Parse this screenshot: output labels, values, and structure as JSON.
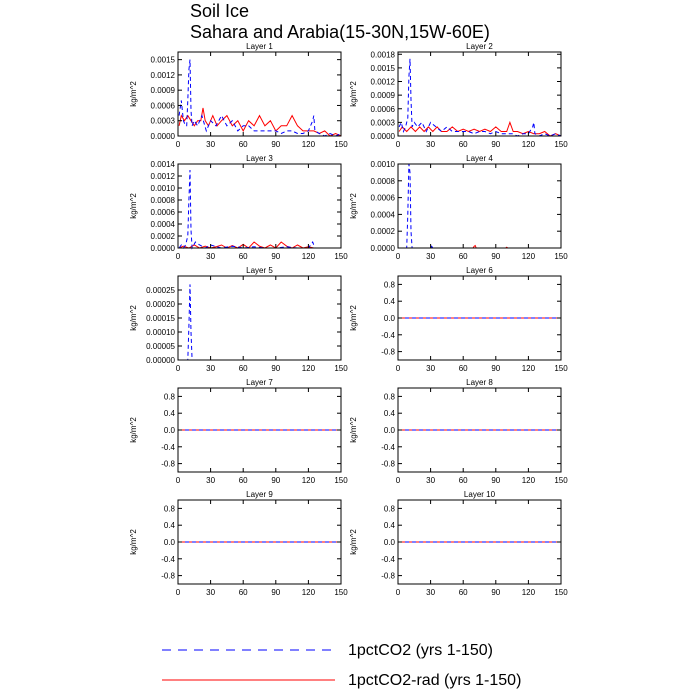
{
  "title_line1": "Soil Ice",
  "title_line2": "Sahara and Arabia(15-30N,15W-60E)",
  "legend": [
    {
      "label": "1pctCO2 (yrs 1-150)",
      "color": "#0000ff",
      "dash": "dashed"
    },
    {
      "label": "1pctCO2-rad (yrs 1-150)",
      "color": "#ff0000",
      "dash": "solid"
    }
  ],
  "colors": {
    "series_dashed": "#0000ff",
    "series_solid": "#ff0000"
  },
  "chart_data": [
    {
      "type": "line",
      "title": "Layer 1",
      "ylabel": "kg/m^2",
      "xlim": [
        0,
        150
      ],
      "ylim": [
        0,
        0.00165
      ],
      "xticks": [
        0,
        30,
        60,
        90,
        120,
        150
      ],
      "yticks": [
        0,
        0.0003,
        0.0006,
        0.0009,
        0.0012,
        0.0015
      ],
      "ytick_labels": [
        "0.0000",
        "0.0003",
        "0.0006",
        "0.0009",
        "0.0012",
        "0.0015"
      ],
      "series": [
        {
          "name": "1pctCO2 (yrs 1-150)",
          "x": [
            1,
            3,
            5,
            7,
            8,
            9,
            10,
            11,
            12,
            13,
            15,
            18,
            22,
            26,
            30,
            35,
            40,
            45,
            50,
            55,
            60,
            65,
            70,
            75,
            80,
            85,
            90,
            95,
            100,
            105,
            110,
            115,
            120,
            124,
            125,
            126,
            130,
            135,
            140,
            145,
            150
          ],
          "y": [
            0.0004,
            0.0007,
            0.0003,
            0.0002,
            0.0002,
            0.0007,
            0.0013,
            0.0015,
            0.0005,
            0.0002,
            0.0003,
            0.0002,
            0.0004,
            0.0001,
            0.0003,
            0.0002,
            0.0004,
            0.0002,
            0.0003,
            0.0001,
            0.0002,
            0.0002,
            0.0001,
            0.0001,
            0.0001,
            0.0001,
            0.0001,
            5e-05,
            0.0001,
            0.0001,
            5e-05,
            5e-05,
            0.0001,
            0.0003,
            0.0004,
            0.0001,
            5e-05,
            0.0,
            5e-05,
            0.0,
            5e-05
          ]
        },
        {
          "name": "1pctCO2-rad (yrs 1-150)",
          "x": [
            1,
            3,
            6,
            9,
            12,
            15,
            18,
            21,
            23,
            25,
            28,
            32,
            36,
            40,
            45,
            50,
            55,
            60,
            65,
            70,
            75,
            80,
            85,
            90,
            95,
            100,
            105,
            110,
            115,
            120,
            125,
            130,
            135,
            140,
            145,
            150
          ],
          "y": [
            0.0002,
            0.0004,
            0.0003,
            0.0004,
            0.0003,
            0.0002,
            0.0003,
            0.0003,
            0.00055,
            0.0003,
            0.0002,
            0.0004,
            0.0002,
            0.0003,
            0.0004,
            0.0002,
            0.0003,
            0.0001,
            0.0003,
            0.0002,
            0.0004,
            0.0002,
            0.0003,
            0.0001,
            0.0002,
            0.0002,
            0.0004,
            0.0002,
            0.0001,
            0.0001,
            0.0001,
            5e-05,
            0.0001,
            0.0,
            5e-05,
            0.0
          ]
        }
      ]
    },
    {
      "type": "line",
      "title": "Layer 2",
      "ylabel": "kg/m^2",
      "xlim": [
        0,
        150
      ],
      "ylim": [
        0,
        0.00185
      ],
      "xticks": [
        0,
        30,
        60,
        90,
        120,
        150
      ],
      "yticks": [
        0,
        0.0003,
        0.0006,
        0.0009,
        0.0012,
        0.0015,
        0.0018
      ],
      "ytick_labels": [
        "0.0000",
        "0.0003",
        "0.0006",
        "0.0009",
        "0.0012",
        "0.0015",
        "0.0018"
      ],
      "series": [
        {
          "name": "1pctCO2 (yrs 1-150)",
          "x": [
            1,
            3,
            5,
            7,
            9,
            10,
            11,
            12,
            13,
            15,
            18,
            22,
            26,
            30,
            35,
            40,
            45,
            50,
            55,
            60,
            65,
            70,
            75,
            80,
            85,
            90,
            95,
            100,
            105,
            110,
            115,
            120,
            124,
            125,
            126,
            130,
            135,
            140,
            145,
            150
          ],
          "y": [
            0.0002,
            0.0003,
            0.0001,
            0.0002,
            0.0004,
            0.0013,
            0.0017,
            0.0008,
            0.0002,
            0.0003,
            0.0002,
            0.0003,
            0.0001,
            0.0003,
            0.0002,
            0.0001,
            0.0002,
            0.0001,
            0.0001,
            0.0001,
            0.0001,
            5e-05,
            0.0001,
            0.0001,
            5e-05,
            0.0001,
            5e-05,
            5e-05,
            5e-05,
            0.0,
            5e-05,
            5e-05,
            0.0002,
            0.0003,
            5e-05,
            0.0,
            5e-05,
            0.0,
            5e-05,
            0.0
          ]
        },
        {
          "name": "1pctCO2-rad (yrs 1-150)",
          "x": [
            1,
            4,
            8,
            12,
            16,
            20,
            24,
            28,
            32,
            36,
            40,
            45,
            50,
            55,
            60,
            65,
            70,
            75,
            80,
            85,
            90,
            95,
            100,
            103,
            106,
            110,
            115,
            120,
            125,
            130,
            135,
            140,
            145,
            150
          ],
          "y": [
            0.0001,
            0.0002,
            0.0001,
            0.0002,
            0.0001,
            0.0002,
            0.0001,
            0.0002,
            0.0001,
            0.0002,
            0.0001,
            0.0001,
            0.0002,
            0.0001,
            0.00015,
            0.0001,
            0.00015,
            0.0001,
            0.00015,
            0.0001,
            0.0002,
            0.0001,
            0.0001,
            0.0003,
            0.0001,
            0.0001,
            5e-05,
            0.0001,
            5e-05,
            5e-05,
            0.0001,
            0.0,
            5e-05,
            0.0
          ]
        }
      ]
    },
    {
      "type": "line",
      "title": "Layer 3",
      "ylabel": "kg/m^2",
      "xlim": [
        0,
        150
      ],
      "ylim": [
        0,
        0.0014
      ],
      "xticks": [
        0,
        30,
        60,
        90,
        120,
        150
      ],
      "yticks": [
        0,
        0.0002,
        0.0004,
        0.0006,
        0.0008,
        0.001,
        0.0012,
        0.0014
      ],
      "ytick_labels": [
        "0.0000",
        "0.0002",
        "0.0004",
        "0.0006",
        "0.0008",
        "0.0010",
        "0.0012",
        "0.0014"
      ],
      "series": [
        {
          "name": "1pctCO2 (yrs 1-150)",
          "x": [
            1,
            3,
            5,
            7,
            9,
            10,
            11,
            12,
            13,
            16,
            20,
            25,
            30,
            40,
            50,
            60,
            70,
            80,
            90,
            100,
            110,
            120,
            124,
            125,
            126,
            130,
            140,
            150
          ],
          "y": [
            0.0,
            5e-05,
            0.0,
            5e-05,
            0.0002,
            0.0008,
            0.0013,
            0.0003,
            0.0,
            0.0001,
            5e-05,
            0.0,
            5e-05,
            0.0,
            3e-05,
            0.0,
            2e-05,
            0.0,
            0.0,
            2e-05,
            0.0,
            0.0,
            0.0001,
            5e-05,
            0.0,
            0.0,
            0.0,
            0.0
          ]
        },
        {
          "name": "1pctCO2-rad (yrs 1-150)",
          "x": [
            1,
            5,
            10,
            15,
            20,
            25,
            30,
            35,
            40,
            45,
            50,
            55,
            60,
            65,
            70,
            75,
            80,
            85,
            90,
            95,
            100,
            105,
            110,
            115,
            120,
            125,
            130,
            140,
            150
          ],
          "y": [
            0.0,
            3e-05,
            0.0,
            5e-05,
            0.0,
            3e-05,
            0.0,
            2e-05,
            5e-05,
            0.0,
            4e-05,
            0.0,
            6e-05,
            0.0,
            0.0001,
            3e-05,
            0.0,
            5e-05,
            0.0,
            0.0001,
            3e-05,
            0.0,
            5e-05,
            0.0,
            2e-05,
            0.0,
            0.0,
            0.0,
            0.0
          ]
        }
      ]
    },
    {
      "type": "line",
      "title": "Layer 4",
      "ylabel": "kg/m^2",
      "xlim": [
        0,
        150
      ],
      "ylim": [
        0,
        0.001
      ],
      "xticks": [
        0,
        30,
        60,
        90,
        120,
        150
      ],
      "yticks": [
        0,
        0.0002,
        0.0004,
        0.0006,
        0.0008,
        0.001
      ],
      "ytick_labels": [
        "0.0000",
        "0.0002",
        "0.0004",
        "0.0006",
        "0.0008",
        "0.0010"
      ],
      "series": [
        {
          "name": "1pctCO2 (yrs 1-150)",
          "x": [
            0,
            8,
            9,
            10,
            11,
            12,
            13,
            14,
            30,
            31,
            32,
            150
          ],
          "y": [
            0.0,
            0.0,
            0.0004,
            0.001,
            0.0009,
            0.0002,
            0.0,
            0.0,
            0.0,
            2e-05,
            0.0,
            0.0
          ]
        },
        {
          "name": "1pctCO2-rad (yrs 1-150)",
          "x": [
            0,
            69,
            70,
            71,
            72,
            99,
            100,
            101,
            150
          ],
          "y": [
            0.0,
            0.0,
            2e-05,
            3e-05,
            0.0,
            0.0,
            1e-05,
            0.0,
            0.0
          ]
        }
      ]
    },
    {
      "type": "line",
      "title": "Layer 5",
      "ylabel": "kg/m^2",
      "xlim": [
        0,
        150
      ],
      "ylim": [
        0,
        0.0003
      ],
      "xticks": [
        0,
        30,
        60,
        90,
        120,
        150
      ],
      "yticks": [
        0,
        5e-05,
        0.0001,
        0.00015,
        0.0002,
        0.00025
      ],
      "ytick_labels": [
        "0.00000",
        "0.00005",
        "0.00010",
        "0.00015",
        "0.00020",
        "0.00025"
      ],
      "series": [
        {
          "name": "1pctCO2 (yrs 1-150)",
          "x": [
            0,
            9,
            10,
            11,
            12,
            13,
            150
          ],
          "y": [
            0.0,
            0.0,
            0.00012,
            0.00027,
            0.0001,
            0.0,
            0.0
          ]
        },
        {
          "name": "1pctCO2-rad (yrs 1-150)",
          "x": [
            0,
            150
          ],
          "y": [
            0.0,
            0.0
          ]
        }
      ]
    },
    {
      "type": "line",
      "title": "Layer 6",
      "ylabel": "kg/m^2",
      "xlim": [
        0,
        150
      ],
      "ylim": [
        -1,
        1
      ],
      "xticks": [
        0,
        30,
        60,
        90,
        120,
        150
      ],
      "yticks": [
        -0.8,
        -0.4,
        0.0,
        0.4,
        0.8
      ],
      "ytick_labels": [
        "-0.8",
        "-0.4",
        "0.0",
        "0.4",
        "0.8"
      ],
      "series": [
        {
          "name": "1pctCO2 (yrs 1-150)",
          "x": [
            0,
            150
          ],
          "y": [
            0,
            0
          ]
        },
        {
          "name": "1pctCO2-rad (yrs 1-150)",
          "x": [
            0,
            150
          ],
          "y": [
            0,
            0
          ]
        }
      ]
    },
    {
      "type": "line",
      "title": "Layer 7",
      "ylabel": "kg/m^2",
      "xlim": [
        0,
        150
      ],
      "ylim": [
        -1,
        1
      ],
      "xticks": [
        0,
        30,
        60,
        90,
        120,
        150
      ],
      "yticks": [
        -0.8,
        -0.4,
        0.0,
        0.4,
        0.8
      ],
      "ytick_labels": [
        "-0.8",
        "-0.4",
        "0.0",
        "0.4",
        "0.8"
      ],
      "series": [
        {
          "name": "1pctCO2 (yrs 1-150)",
          "x": [
            0,
            150
          ],
          "y": [
            0,
            0
          ]
        },
        {
          "name": "1pctCO2-rad (yrs 1-150)",
          "x": [
            0,
            150
          ],
          "y": [
            0,
            0
          ]
        }
      ]
    },
    {
      "type": "line",
      "title": "Layer 8",
      "ylabel": "kg/m^2",
      "xlim": [
        0,
        150
      ],
      "ylim": [
        -1,
        1
      ],
      "xticks": [
        0,
        30,
        60,
        90,
        120,
        150
      ],
      "yticks": [
        -0.8,
        -0.4,
        0.0,
        0.4,
        0.8
      ],
      "ytick_labels": [
        "-0.8",
        "-0.4",
        "0.0",
        "0.4",
        "0.8"
      ],
      "series": [
        {
          "name": "1pctCO2 (yrs 1-150)",
          "x": [
            0,
            150
          ],
          "y": [
            0,
            0
          ]
        },
        {
          "name": "1pctCO2-rad (yrs 1-150)",
          "x": [
            0,
            150
          ],
          "y": [
            0,
            0
          ]
        }
      ]
    },
    {
      "type": "line",
      "title": "Layer 9",
      "ylabel": "kg/m^2",
      "xlim": [
        0,
        150
      ],
      "ylim": [
        -1,
        1
      ],
      "xticks": [
        0,
        30,
        60,
        90,
        120,
        150
      ],
      "yticks": [
        -0.8,
        -0.4,
        0.0,
        0.4,
        0.8
      ],
      "ytick_labels": [
        "-0.8",
        "-0.4",
        "0.0",
        "0.4",
        "0.8"
      ],
      "series": [
        {
          "name": "1pctCO2 (yrs 1-150)",
          "x": [
            0,
            150
          ],
          "y": [
            0,
            0
          ]
        },
        {
          "name": "1pctCO2-rad (yrs 1-150)",
          "x": [
            0,
            150
          ],
          "y": [
            0,
            0
          ]
        }
      ]
    },
    {
      "type": "line",
      "title": "Layer 10",
      "ylabel": "kg/m^2",
      "xlim": [
        0,
        150
      ],
      "ylim": [
        -1,
        1
      ],
      "xticks": [
        0,
        30,
        60,
        90,
        120,
        150
      ],
      "yticks": [
        -0.8,
        -0.4,
        0.0,
        0.4,
        0.8
      ],
      "ytick_labels": [
        "-0.8",
        "-0.4",
        "0.0",
        "0.4",
        "0.8"
      ],
      "series": [
        {
          "name": "1pctCO2 (yrs 1-150)",
          "x": [
            0,
            150
          ],
          "y": [
            0,
            0
          ]
        },
        {
          "name": "1pctCO2-rad (yrs 1-150)",
          "x": [
            0,
            150
          ],
          "y": [
            0,
            0
          ]
        }
      ]
    }
  ]
}
